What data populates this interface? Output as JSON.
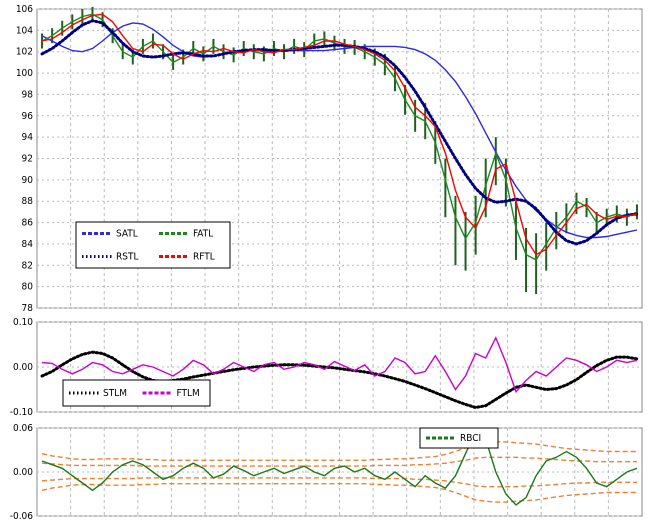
{
  "chart_data": [
    {
      "type": "line",
      "ylim": [
        78,
        106
      ],
      "yticks": [
        78,
        80,
        82,
        84,
        86,
        88,
        90,
        92,
        94,
        96,
        98,
        100,
        102,
        104,
        106
      ],
      "grid": true,
      "legend": "lower left",
      "bars": {
        "color": "#1f5f1f",
        "high": [
          103.7,
          104.2,
          104.9,
          105.5,
          106.0,
          106.2,
          105.7,
          104.2,
          102.7,
          102.2,
          103.2,
          103.7,
          102.7,
          101.7,
          102.2,
          103.0,
          102.5,
          103.2,
          102.7,
          102.4,
          103.0,
          102.7,
          102.5,
          103.0,
          102.7,
          103.2,
          102.9,
          103.7,
          103.9,
          103.5,
          103.2,
          103.1,
          102.7,
          102.3,
          101.8,
          100.7,
          98.9,
          97.5,
          97.2,
          95.5,
          92.0,
          88.5,
          87.0,
          88.5,
          92.0,
          94.0,
          92.0,
          88.0,
          85.5,
          85.0,
          86.0,
          87.0,
          87.8,
          88.8,
          88.3,
          87.0,
          87.3,
          87.6,
          87.3,
          87.7
        ],
        "low": [
          102.3,
          102.8,
          103.5,
          104.1,
          104.6,
          104.8,
          104.3,
          102.8,
          101.3,
          100.8,
          101.8,
          102.3,
          101.3,
          100.3,
          100.8,
          101.6,
          101.1,
          101.8,
          101.3,
          101.0,
          101.6,
          101.3,
          101.1,
          101.6,
          101.3,
          101.8,
          101.5,
          102.3,
          102.5,
          102.1,
          101.8,
          101.7,
          101.3,
          100.7,
          99.8,
          98.3,
          96.1,
          94.5,
          93.8,
          91.5,
          86.5,
          82.0,
          81.5,
          83.0,
          86.5,
          89.5,
          87.5,
          82.5,
          79.5,
          79.3,
          81.5,
          83.5,
          85.0,
          86.8,
          86.5,
          85.0,
          85.7,
          86.0,
          85.7,
          86.3
        ]
      },
      "series": [
        {
          "name": "SATL",
          "color": "#2a2ae8",
          "style": "solid",
          "values": [
            103.5,
            103.0,
            102.5,
            102.1,
            102.0,
            102.3,
            103.0,
            103.8,
            104.4,
            104.7,
            104.6,
            104.1,
            103.4,
            102.6,
            102.0,
            101.6,
            101.5,
            101.6,
            101.8,
            102.0,
            102.1,
            102.1,
            102.1,
            102.1,
            102.1,
            102.1,
            102.1,
            102.1,
            102.1,
            102.2,
            102.3,
            102.4,
            102.5,
            102.5,
            102.5,
            102.5,
            102.4,
            102.2,
            101.8,
            101.2,
            100.3,
            99.2,
            97.8,
            96.2,
            94.4,
            92.6,
            90.9,
            89.4,
            88.1,
            87.1,
            86.3,
            85.6,
            85.1,
            84.8,
            84.6,
            84.6,
            84.7,
            84.9,
            85.1,
            85.3
          ]
        },
        {
          "name": "FATL",
          "color": "#1a8a1a",
          "style": "solid",
          "values": [
            103.0,
            103.5,
            104.2,
            104.8,
            105.3,
            105.5,
            105.0,
            103.5,
            102.0,
            101.5,
            102.5,
            103.0,
            102.0,
            101.0,
            101.5,
            102.3,
            101.8,
            102.5,
            102.0,
            101.7,
            102.3,
            102.0,
            101.8,
            102.3,
            102.0,
            102.5,
            102.2,
            103.0,
            103.2,
            102.8,
            102.5,
            102.4,
            102.0,
            101.5,
            100.8,
            99.5,
            97.5,
            96.0,
            95.5,
            93.5,
            90.0,
            86.5,
            84.5,
            86.0,
            89.5,
            92.5,
            90.0,
            85.5,
            83.0,
            82.5,
            84.0,
            85.5,
            86.5,
            88.0,
            87.5,
            86.0,
            86.5,
            86.8,
            86.5,
            87.0
          ]
        },
        {
          "name": "RSTL",
          "color": "#000080",
          "style": "dotted",
          "values": [
            101.8,
            102.3,
            103.0,
            103.8,
            104.5,
            104.9,
            104.7,
            103.8,
            102.8,
            102.0,
            101.6,
            101.5,
            101.6,
            101.8,
            101.9,
            101.8,
            101.6,
            101.6,
            101.8,
            102.0,
            102.1,
            102.2,
            102.2,
            102.1,
            102.1,
            102.2,
            102.3,
            102.4,
            102.5,
            102.6,
            102.6,
            102.5,
            102.3,
            102.0,
            101.5,
            100.7,
            99.6,
            98.3,
            96.8,
            95.2,
            93.6,
            92.0,
            90.5,
            89.2,
            88.3,
            87.9,
            88.0,
            88.2,
            88.0,
            87.3,
            86.2,
            85.1,
            84.3,
            84.0,
            84.3,
            85.0,
            85.8,
            86.4,
            86.7,
            86.8
          ]
        },
        {
          "name": "RFTL",
          "color": "#ff0000",
          "style": "solid",
          "values": [
            103.0,
            103.2,
            103.8,
            104.5,
            105.0,
            105.4,
            105.5,
            104.8,
            103.5,
            102.3,
            102.0,
            102.7,
            102.6,
            101.8,
            101.3,
            101.8,
            102.1,
            102.0,
            102.3,
            102.0,
            101.9,
            102.2,
            102.0,
            101.9,
            102.2,
            102.2,
            102.4,
            102.6,
            103.0,
            103.0,
            102.7,
            102.5,
            102.2,
            101.8,
            101.2,
            100.2,
            98.6,
            96.8,
            96.0,
            95.0,
            92.5,
            89.0,
            86.5,
            85.5,
            87.5,
            91.0,
            91.5,
            88.0,
            84.5,
            83.0,
            83.5,
            84.8,
            86.0,
            87.3,
            87.7,
            86.8,
            86.3,
            86.6,
            86.6,
            86.8
          ]
        }
      ]
    },
    {
      "type": "line",
      "ylim": [
        -0.1,
        0.1
      ],
      "yticks": [
        {
          "value": -0.1,
          "label": "-0.10"
        },
        {
          "value": 0,
          "label": "0.00"
        },
        {
          "value": 0.1,
          "label": "0.10"
        }
      ],
      "grid": true,
      "legend": "lower left",
      "series": [
        {
          "name": "STLM",
          "color": "#000000",
          "style": "dotted",
          "values": [
            -0.02,
            -0.01,
            0.005,
            0.018,
            0.028,
            0.033,
            0.03,
            0.02,
            0.005,
            -0.01,
            -0.022,
            -0.03,
            -0.032,
            -0.03,
            -0.027,
            -0.022,
            -0.018,
            -0.014,
            -0.01,
            -0.006,
            -0.003,
            0.0,
            0.002,
            0.004,
            0.005,
            0.005,
            0.004,
            0.002,
            0.0,
            -0.002,
            -0.005,
            -0.008,
            -0.011,
            -0.015,
            -0.02,
            -0.026,
            -0.032,
            -0.04,
            -0.048,
            -0.057,
            -0.066,
            -0.075,
            -0.083,
            -0.09,
            -0.086,
            -0.072,
            -0.058,
            -0.045,
            -0.04,
            -0.045,
            -0.05,
            -0.048,
            -0.04,
            -0.028,
            -0.012,
            0.003,
            0.015,
            0.022,
            0.022,
            0.018
          ]
        },
        {
          "name": "FTLM",
          "color": "#cc00cc",
          "style": "solid",
          "values": [
            0.01,
            0.008,
            -0.005,
            -0.015,
            -0.005,
            0.01,
            0.005,
            -0.01,
            -0.015,
            -0.005,
            0.005,
            0.0,
            -0.01,
            -0.02,
            -0.005,
            0.015,
            0.005,
            -0.015,
            -0.005,
            0.01,
            0.0,
            -0.01,
            0.005,
            0.01,
            -0.005,
            0.0,
            0.01,
            0.005,
            -0.005,
            0.012,
            0.002,
            -0.008,
            0.005,
            -0.02,
            -0.01,
            0.02,
            0.01,
            -0.015,
            -0.01,
            0.025,
            -0.01,
            -0.05,
            -0.02,
            0.03,
            0.02,
            0.065,
            0.01,
            -0.055,
            -0.03,
            -0.01,
            -0.02,
            0.0,
            0.02,
            0.015,
            0.005,
            -0.01,
            0.0,
            0.015,
            0.01,
            0.015
          ]
        }
      ]
    },
    {
      "type": "line",
      "ylim": [
        -0.06,
        0.06
      ],
      "yticks": [
        {
          "value": -0.06,
          "label": "-0.06"
        },
        {
          "value": 0,
          "label": "0.00"
        },
        {
          "value": 0.06,
          "label": "0.06"
        }
      ],
      "grid": true,
      "legend": "upper right",
      "series": [
        {
          "color": "#f08030",
          "style": "dashed",
          "values": [
            0.025,
            0.022,
            0.02,
            0.018,
            0.017,
            0.017,
            0.018,
            0.018,
            0.018,
            0.018,
            0.017,
            0.017,
            0.016,
            0.016,
            0.016,
            0.016,
            0.016,
            0.016,
            0.016,
            0.016,
            0.016,
            0.016,
            0.016,
            0.016,
            0.016,
            0.016,
            0.016,
            0.016,
            0.016,
            0.016,
            0.016,
            0.016,
            0.016,
            0.017,
            0.017,
            0.018,
            0.018,
            0.019,
            0.02,
            0.021,
            0.024,
            0.028,
            0.033,
            0.038,
            0.04,
            0.041,
            0.041,
            0.04,
            0.039,
            0.038,
            0.036,
            0.034,
            0.032,
            0.031,
            0.03,
            0.029,
            0.028,
            0.028,
            0.028,
            0.028
          ]
        },
        {
          "color": "#f08030",
          "style": "dashed",
          "values": [
            0.012,
            0.011,
            0.01,
            0.009,
            0.009,
            0.009,
            0.009,
            0.009,
            0.009,
            0.009,
            0.008,
            0.008,
            0.008,
            0.008,
            0.008,
            0.008,
            0.008,
            0.008,
            0.008,
            0.008,
            0.008,
            0.008,
            0.008,
            0.008,
            0.008,
            0.008,
            0.008,
            0.008,
            0.008,
            0.008,
            0.008,
            0.008,
            0.008,
            0.009,
            0.009,
            0.009,
            0.009,
            0.01,
            0.01,
            0.011,
            0.012,
            0.014,
            0.016,
            0.019,
            0.02,
            0.02,
            0.02,
            0.02,
            0.019,
            0.019,
            0.018,
            0.017,
            0.016,
            0.015,
            0.015,
            0.014,
            0.014,
            0.014,
            0.014,
            0.014
          ]
        },
        {
          "color": "#f08030",
          "style": "dashed",
          "values": [
            -0.012,
            -0.011,
            -0.01,
            -0.009,
            -0.009,
            -0.009,
            -0.009,
            -0.009,
            -0.009,
            -0.009,
            -0.008,
            -0.008,
            -0.008,
            -0.008,
            -0.008,
            -0.008,
            -0.008,
            -0.008,
            -0.008,
            -0.008,
            -0.008,
            -0.008,
            -0.008,
            -0.008,
            -0.008,
            -0.008,
            -0.008,
            -0.008,
            -0.008,
            -0.008,
            -0.008,
            -0.008,
            -0.008,
            -0.009,
            -0.009,
            -0.009,
            -0.009,
            -0.01,
            -0.01,
            -0.011,
            -0.012,
            -0.014,
            -0.016,
            -0.019,
            -0.02,
            -0.02,
            -0.02,
            -0.02,
            -0.019,
            -0.019,
            -0.018,
            -0.017,
            -0.016,
            -0.015,
            -0.015,
            -0.014,
            -0.014,
            -0.014,
            -0.014,
            -0.014
          ]
        },
        {
          "color": "#f08030",
          "style": "dashed",
          "values": [
            -0.025,
            -0.022,
            -0.02,
            -0.018,
            -0.017,
            -0.017,
            -0.018,
            -0.018,
            -0.018,
            -0.018,
            -0.017,
            -0.017,
            -0.016,
            -0.016,
            -0.016,
            -0.016,
            -0.016,
            -0.016,
            -0.016,
            -0.016,
            -0.016,
            -0.016,
            -0.016,
            -0.016,
            -0.016,
            -0.016,
            -0.016,
            -0.016,
            -0.016,
            -0.016,
            -0.016,
            -0.016,
            -0.016,
            -0.017,
            -0.017,
            -0.018,
            -0.018,
            -0.019,
            -0.02,
            -0.021,
            -0.024,
            -0.028,
            -0.033,
            -0.038,
            -0.04,
            -0.041,
            -0.041,
            -0.04,
            -0.039,
            -0.038,
            -0.036,
            -0.034,
            -0.032,
            -0.031,
            -0.03,
            -0.029,
            -0.028,
            -0.028,
            -0.028,
            -0.028
          ]
        },
        {
          "name": "RBCI",
          "color": "#1a7a1a",
          "style": "solid",
          "values": [
            0.015,
            0.01,
            0.005,
            -0.005,
            -0.015,
            -0.025,
            -0.015,
            0.0,
            0.01,
            0.015,
            0.01,
            0.0,
            -0.01,
            -0.005,
            0.005,
            0.012,
            0.005,
            -0.008,
            -0.003,
            0.008,
            0.002,
            -0.005,
            0.0,
            0.005,
            -0.002,
            0.003,
            0.008,
            0.0,
            -0.005,
            0.005,
            0.008,
            0.0,
            0.005,
            -0.005,
            -0.01,
            0.0,
            -0.01,
            -0.02,
            -0.005,
            -0.015,
            -0.022,
            -0.005,
            0.025,
            0.055,
            0.045,
            0.0,
            -0.03,
            -0.045,
            -0.035,
            -0.005,
            0.015,
            0.02,
            0.028,
            0.02,
            0.005,
            -0.015,
            -0.02,
            -0.01,
            0.0,
            0.005
          ]
        }
      ]
    }
  ]
}
